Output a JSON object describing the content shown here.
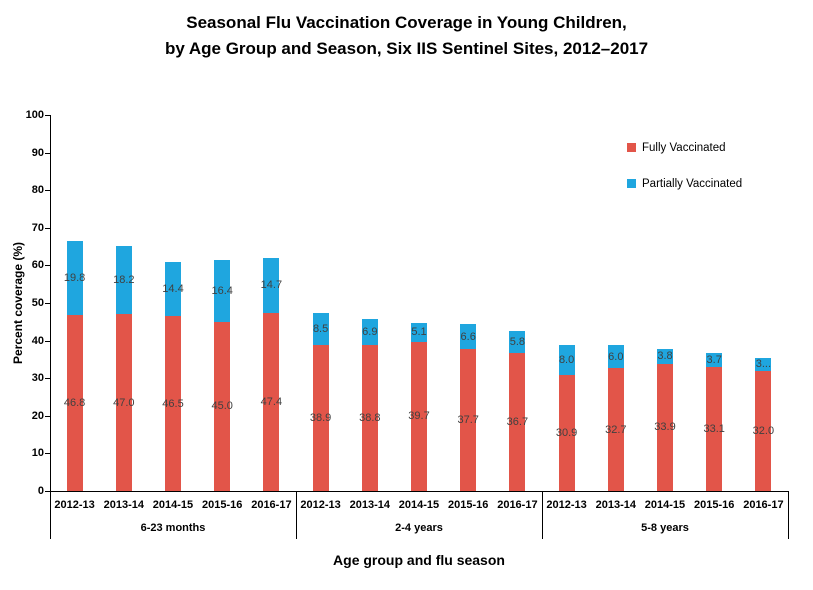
{
  "title": {
    "line1": "Seasonal Flu Vaccination Coverage in Young Children,",
    "line2": "by Age Group and Season, Six IIS Sentinel Sites, 2012–2017"
  },
  "y_axis": {
    "title": "Percent coverage (%)",
    "min": 0,
    "max": 100,
    "step": 10
  },
  "x_axis": {
    "title": "Age group and flu season"
  },
  "legend": {
    "items": [
      {
        "label": "Fully Vaccinated",
        "color": "#e25549"
      },
      {
        "label": "Partially Vaccinated",
        "color": "#1fa6df"
      }
    ]
  },
  "chart_data": {
    "type": "bar",
    "stacked": true,
    "title": "Seasonal Flu Vaccination Coverage in Young Children, by Age Group and Season, Six IIS Sentinel Sites, 2012–2017",
    "xlabel": "Age group and flu season",
    "ylabel": "Percent coverage (%)",
    "ylim": [
      0,
      100
    ],
    "grid": false,
    "legend_position": "upper right",
    "series_names": [
      "Fully Vaccinated",
      "Partially Vaccinated"
    ],
    "colors": {
      "fully": "#e25549",
      "partially": "#1fa6df",
      "label": "#404040"
    },
    "groups": [
      {
        "label": "6-23 months",
        "bars": [
          {
            "season": "2012-13",
            "fully": 46.8,
            "partially": 19.8,
            "fully_label": "46.8",
            "partially_label": "19.8"
          },
          {
            "season": "2013-14",
            "fully": 47.0,
            "partially": 18.2,
            "fully_label": "47.0",
            "partially_label": "18.2"
          },
          {
            "season": "2014-15",
            "fully": 46.5,
            "partially": 14.4,
            "fully_label": "46.5",
            "partially_label": "14.4"
          },
          {
            "season": "2015-16",
            "fully": 45.0,
            "partially": 16.4,
            "fully_label": "45.0",
            "partially_label": "16.4"
          },
          {
            "season": "2016-17",
            "fully": 47.4,
            "partially": 14.7,
            "fully_label": "47.4",
            "partially_label": "14.7"
          }
        ]
      },
      {
        "label": "2-4 years",
        "bars": [
          {
            "season": "2012-13",
            "fully": 38.9,
            "partially": 8.5,
            "fully_label": "38.9",
            "partially_label": "8.5"
          },
          {
            "season": "2013-14",
            "fully": 38.8,
            "partially": 6.9,
            "fully_label": "38.8",
            "partially_label": "6.9"
          },
          {
            "season": "2014-15",
            "fully": 39.7,
            "partially": 5.1,
            "fully_label": "39.7",
            "partially_label": "5.1"
          },
          {
            "season": "2015-16",
            "fully": 37.7,
            "partially": 6.6,
            "fully_label": "37.7",
            "partially_label": "6.6"
          },
          {
            "season": "2016-17",
            "fully": 36.7,
            "partially": 5.8,
            "fully_label": "36.7",
            "partially_label": "5.8"
          }
        ]
      },
      {
        "label": "5-8 years",
        "bars": [
          {
            "season": "2012-13",
            "fully": 30.9,
            "partially": 8.0,
            "fully_label": "30.9",
            "partially_label": "8.0"
          },
          {
            "season": "2013-14",
            "fully": 32.7,
            "partially": 6.0,
            "fully_label": "32.7",
            "partially_label": "6.0"
          },
          {
            "season": "2014-15",
            "fully": 33.9,
            "partially": 3.8,
            "fully_label": "33.9",
            "partially_label": "3.8"
          },
          {
            "season": "2015-16",
            "fully": 33.1,
            "partially": 3.7,
            "fully_label": "33.1",
            "partially_label": "3.7"
          },
          {
            "season": "2016-17",
            "fully": 32.0,
            "partially": 3.5,
            "fully_label": "32.0",
            "partially_label": "3..."
          }
        ]
      }
    ]
  }
}
